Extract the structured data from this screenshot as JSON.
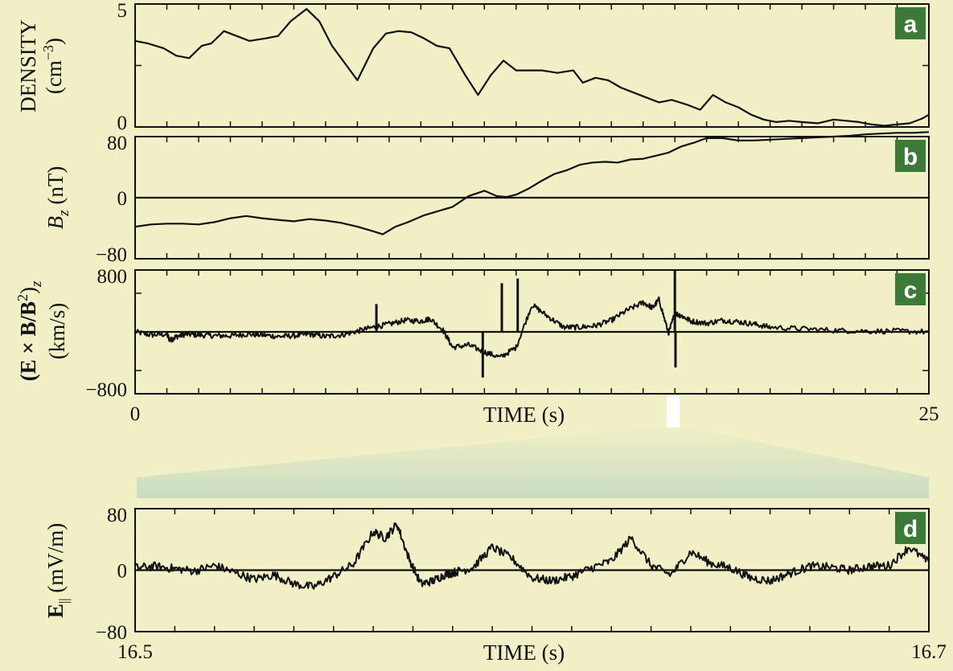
{
  "colors": {
    "background": "#f1f0c6",
    "badge": "#3c7a38",
    "line": "#111111",
    "zoom_band": "#dde8cf"
  },
  "chart_data": [
    {
      "type": "line",
      "panel": "a",
      "ylabel_line1": "DENSITY",
      "ylabel_line2": "(cm",
      "ylabel_sup": "−3",
      "ylabel_close": ")",
      "xlim": [
        0,
        25
      ],
      "ylim": [
        0,
        5
      ],
      "yticks": [
        0,
        2.5,
        5
      ],
      "yticklabels": [
        "0",
        "",
        "5"
      ],
      "x": [
        0,
        0.4,
        0.9,
        1.3,
        1.7,
        2.1,
        2.4,
        2.8,
        3.2,
        3.6,
        4.1,
        4.5,
        4.9,
        5.4,
        5.8,
        6.2,
        6.6,
        7.0,
        7.5,
        7.9,
        8.3,
        8.7,
        9.1,
        9.5,
        9.9,
        10.4,
        10.8,
        11.2,
        11.6,
        12.0,
        12.4,
        12.8,
        13.3,
        13.8,
        14.1,
        14.5,
        14.9,
        15.3,
        15.7,
        16.1,
        16.5,
        16.9,
        17.4,
        17.8,
        18.2,
        18.6,
        19.0,
        19.4,
        19.8,
        20.2,
        20.6,
        21.0,
        21.5,
        22.0,
        22.4,
        22.8,
        23.2,
        23.6,
        24.0,
        24.4,
        24.8,
        25
      ],
      "y": [
        3.5,
        3.4,
        3.2,
        2.9,
        2.8,
        3.3,
        3.4,
        3.9,
        3.7,
        3.5,
        3.6,
        3.7,
        4.3,
        4.8,
        4.3,
        3.3,
        2.6,
        1.9,
        3.2,
        3.8,
        3.9,
        3.85,
        3.6,
        3.3,
        3.2,
        2.1,
        1.3,
        2.1,
        2.7,
        2.3,
        2.3,
        2.3,
        2.2,
        2.3,
        1.8,
        2.0,
        1.9,
        1.6,
        1.4,
        1.2,
        1.0,
        1.1,
        0.9,
        0.7,
        1.3,
        1.0,
        0.8,
        0.5,
        0.3,
        0.2,
        0.25,
        0.2,
        0.15,
        0.3,
        0.25,
        0.2,
        0.1,
        0.05,
        0.1,
        0.15,
        0.35,
        0.5
      ],
      "badge": "a"
    },
    {
      "type": "line",
      "panel": "b",
      "ylabel_var": "B",
      "ylabel_sub": "z",
      "ylabel_unit": " (nT)",
      "xlim": [
        0,
        25
      ],
      "ylim": [
        -80,
        80
      ],
      "yticks": [
        -80,
        0,
        80
      ],
      "yticklabels": [
        "−80",
        "0",
        "80"
      ],
      "zero_line": true,
      "x": [
        0,
        0.5,
        1,
        1.5,
        2,
        2.5,
        3,
        3.5,
        4,
        4.5,
        5,
        5.5,
        6,
        6.5,
        7,
        7.5,
        7.8,
        8.2,
        8.6,
        9.1,
        9.6,
        10,
        10.5,
        11,
        11.4,
        11.7,
        12,
        12.4,
        12.8,
        13.2,
        13.6,
        14,
        14.4,
        14.8,
        15.2,
        15.6,
        16,
        16.4,
        16.8,
        17.2,
        17.6,
        18,
        18.5,
        19,
        19.5,
        20,
        20.5,
        21,
        21.5,
        22,
        22.5,
        23,
        23.5,
        24,
        24.5,
        25
      ],
      "y": [
        -38,
        -35,
        -34,
        -34,
        -35,
        -32,
        -27,
        -24,
        -27,
        -29,
        -31,
        -28,
        -30,
        -33,
        -38,
        -44,
        -48,
        -38,
        -32,
        -23,
        -17,
        -12,
        2,
        9,
        2,
        1,
        4,
        12,
        22,
        31,
        36,
        43,
        46,
        47,
        46,
        50,
        51,
        55,
        59,
        67,
        72,
        78,
        78,
        75,
        75,
        76,
        77,
        78,
        79,
        80,
        81,
        83,
        84,
        85,
        85,
        86
      ],
      "badge": "b"
    },
    {
      "type": "line",
      "panel": "c",
      "ylabel_line1": "(E × B/B",
      "ylabel_sup": "2",
      "ylabel_close": ")",
      "ylabel_sub": "z",
      "ylabel_line2": "(km/s)",
      "xlabel": "TIME (s)",
      "xlim": [
        0,
        25
      ],
      "ylim": [
        -800,
        800
      ],
      "xticks": [
        0,
        25
      ],
      "xticklabels": [
        "0",
        "25"
      ],
      "yticks": [
        -800,
        -500,
        0,
        500,
        800
      ],
      "yticklabels": [
        "−800",
        "",
        "",
        "",
        "800"
      ],
      "zero_line": true,
      "x": [
        0,
        0.5,
        1,
        1.1,
        1.3,
        1.6,
        2,
        2.5,
        3,
        3.5,
        4,
        4.5,
        5,
        5.5,
        6,
        6.5,
        7,
        7.5,
        8,
        8.5,
        9,
        9.3,
        9.7,
        10,
        10.5,
        11,
        11.5,
        12,
        12.5,
        13,
        13.5,
        14,
        14.5,
        15,
        15.5,
        16,
        16.3,
        16.5,
        16.8,
        17,
        17.2,
        17.5,
        18,
        18.5,
        19,
        19.5,
        20,
        21,
        22,
        23,
        24,
        25
      ],
      "y": [
        0,
        -40,
        -30,
        -110,
        -60,
        -30,
        -40,
        -50,
        -50,
        -30,
        -40,
        -60,
        -50,
        -30,
        -60,
        -40,
        10,
        60,
        100,
        150,
        140,
        170,
        20,
        -200,
        -170,
        -260,
        -330,
        -200,
        350,
        200,
        60,
        60,
        80,
        150,
        280,
        380,
        310,
        420,
        -20,
        240,
        210,
        140,
        110,
        150,
        130,
        100,
        60,
        40,
        20,
        10,
        10,
        0
      ],
      "spikes": [
        {
          "x": 10.95,
          "y": -590
        },
        {
          "x": 11.55,
          "y": 630
        },
        {
          "x": 12.05,
          "y": 690
        },
        {
          "x": 17.0,
          "y": 800
        },
        {
          "x": 17.02,
          "y": -460
        },
        {
          "x": 7.6,
          "y": 360
        }
      ],
      "badge": "c"
    },
    {
      "type": "line",
      "panel": "d",
      "ylabel_var": "E",
      "ylabel_sub": "||",
      "ylabel_unit": " (mV/m)",
      "xlabel": "TIME (s)",
      "xlim": [
        16.5,
        16.7
      ],
      "ylim": [
        -80,
        80
      ],
      "xticks": [
        16.5,
        16.7
      ],
      "xticklabels": [
        "16.5",
        "16.7"
      ],
      "yticks": [
        -80,
        0,
        80
      ],
      "yticklabels": [
        "−80",
        "0",
        "80"
      ],
      "zero_line": true,
      "x": [
        16.5,
        16.505,
        16.51,
        16.515,
        16.52,
        16.525,
        16.53,
        16.535,
        16.54,
        16.545,
        16.55,
        16.555,
        16.56,
        16.563,
        16.566,
        16.569,
        16.572,
        16.575,
        16.578,
        16.581,
        16.585,
        16.59,
        16.595,
        16.6,
        16.605,
        16.61,
        16.615,
        16.62,
        16.625,
        16.63,
        16.635,
        16.64,
        16.645,
        16.65,
        16.655,
        16.66,
        16.665,
        16.67,
        16.675,
        16.68,
        16.685,
        16.69,
        16.695,
        16.7
      ],
      "y": [
        3,
        5,
        2,
        -1,
        6,
        -3,
        -12,
        -6,
        -18,
        -22,
        -8,
        8,
        50,
        42,
        60,
        15,
        -18,
        -14,
        -6,
        -2,
        3,
        30,
        15,
        -10,
        -14,
        -8,
        3,
        12,
        42,
        6,
        -6,
        24,
        9,
        3,
        -10,
        -14,
        -4,
        5,
        4,
        0,
        5,
        6,
        30,
        10
      ],
      "badge": "d"
    }
  ]
}
